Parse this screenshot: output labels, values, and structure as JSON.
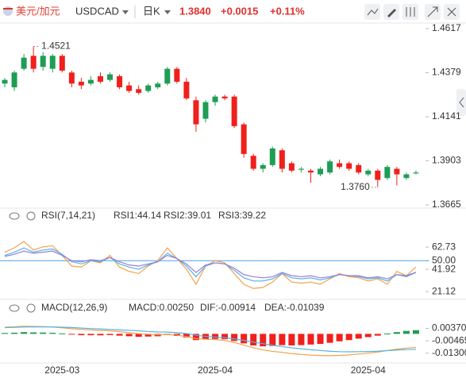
{
  "header": {
    "pair_cn": "美元/加元",
    "symbol": "USDCAD",
    "period": "日K",
    "price": "1.3840",
    "change": "+0.0015",
    "change_pct": "+0.11%"
  },
  "chart_data": [
    {
      "type": "candlestick",
      "up_color": "#1f9d55",
      "down_color": "#f0201c",
      "high_label": "1.4521",
      "low_label": "1.3760",
      "ylim": [
        1.3665,
        1.4617
      ],
      "yticks": [
        1.4617,
        1.4379,
        1.4141,
        1.3903,
        1.3665
      ],
      "open": [
        1.432,
        1.43,
        1.44,
        1.447,
        1.441,
        1.44,
        1.447,
        1.438,
        1.433,
        1.432,
        1.436,
        1.434,
        1.436,
        1.431,
        1.429,
        1.428,
        1.43,
        1.432,
        1.44,
        1.433,
        1.423,
        1.413,
        1.422,
        1.425,
        1.425,
        1.41,
        1.393,
        1.386,
        1.388,
        1.396,
        1.389,
        1.3855,
        1.385,
        1.383,
        1.384,
        1.389,
        1.389,
        1.388,
        1.383,
        1.385,
        1.381,
        1.386,
        1.381,
        1.3835
      ],
      "high": [
        1.435,
        1.439,
        1.448,
        1.4521,
        1.449,
        1.448,
        1.448,
        1.439,
        1.435,
        1.436,
        1.438,
        1.438,
        1.437,
        1.433,
        1.431,
        1.432,
        1.433,
        1.441,
        1.441,
        1.435,
        1.425,
        1.423,
        1.426,
        1.426,
        1.426,
        1.411,
        1.394,
        1.389,
        1.398,
        1.397,
        1.39,
        1.387,
        1.386,
        1.387,
        1.391,
        1.391,
        1.39,
        1.389,
        1.386,
        1.386,
        1.388,
        1.387,
        1.384,
        1.385
      ],
      "low": [
        1.43,
        1.428,
        1.439,
        1.438,
        1.439,
        1.438,
        1.438,
        1.43,
        1.429,
        1.431,
        1.432,
        1.433,
        1.429,
        1.427,
        1.426,
        1.427,
        1.429,
        1.431,
        1.432,
        1.423,
        1.406,
        1.411,
        1.42,
        1.423,
        1.408,
        1.392,
        1.385,
        1.384,
        1.387,
        1.384,
        1.384,
        1.384,
        1.3785,
        1.382,
        1.383,
        1.386,
        1.385,
        1.383,
        1.382,
        1.376,
        1.38,
        1.377,
        1.38,
        1.383
      ],
      "close": [
        1.434,
        1.438,
        1.446,
        1.44,
        1.447,
        1.447,
        1.439,
        1.432,
        1.431,
        1.434,
        1.433,
        1.437,
        1.43,
        1.428,
        1.427,
        1.431,
        1.432,
        1.44,
        1.433,
        1.424,
        1.41,
        1.422,
        1.425,
        1.424,
        1.409,
        1.394,
        1.386,
        1.388,
        1.397,
        1.386,
        1.385,
        1.386,
        1.384,
        1.386,
        1.39,
        1.387,
        1.386,
        1.384,
        1.385,
        1.38,
        1.387,
        1.383,
        1.383,
        1.384
      ]
    },
    {
      "type": "line",
      "title": "RSI(7,14,21)",
      "ylim": [
        16,
        74
      ],
      "yticks": [
        62.73,
        {
          "value": 50,
          "label": "50.00"
        },
        41.92,
        21.12
      ],
      "midline": 50,
      "midline_color": "#4a9fe8",
      "series": [
        {
          "name": "RSI1:44.14",
          "color": "#f4a24a",
          "values": [
            58,
            62,
            68,
            60,
            63,
            64,
            55,
            45,
            44,
            50,
            48,
            55,
            44,
            40,
            38,
            45,
            50,
            62,
            52,
            42,
            28,
            45,
            50,
            48,
            38,
            28,
            24,
            25,
            30,
            38,
            30,
            29,
            30,
            28,
            33,
            38,
            35,
            34,
            31,
            33,
            28,
            40,
            36,
            44.14
          ]
        },
        {
          "name": "RSI2:39.01",
          "color": "#55b3e6",
          "values": [
            55,
            58,
            62,
            58,
            60,
            61,
            56,
            49,
            47,
            50,
            49,
            53,
            47,
            44,
            42,
            46,
            49,
            57,
            52,
            45,
            35,
            45,
            48,
            47,
            41,
            34,
            31,
            31,
            33,
            38,
            34,
            33,
            34,
            32,
            34,
            37,
            36,
            35,
            33,
            34,
            31,
            37,
            35,
            39.01
          ]
        },
        {
          "name": "RSI3:39.22",
          "color": "#9b7fd4",
          "values": [
            54,
            56,
            59,
            57,
            58,
            59,
            55,
            50,
            49,
            51,
            50,
            53,
            49,
            46,
            45,
            47,
            49,
            55,
            52,
            47,
            39,
            46,
            48,
            47,
            43,
            37,
            35,
            34,
            35,
            39,
            36,
            35,
            36,
            34,
            35,
            37,
            36,
            36,
            34,
            35,
            33,
            37,
            36,
            39.22
          ]
        }
      ]
    },
    {
      "type": "combo",
      "title": "MACD(12,26,9)",
      "ylim": [
        -0.018,
        0.012
      ],
      "yticks": [
        {
          "value": 0.0037,
          "label": "0.00370"
        },
        -0.00465,
        {
          "value": -0.013,
          "label": "-0.01300"
        }
      ],
      "up_color": "#1f9d55",
      "down_color": "#f0201c",
      "categories": [
        null,
        null,
        null,
        null,
        null,
        null,
        "2025-03",
        null,
        null,
        null,
        null,
        null,
        null,
        null,
        null,
        null,
        null,
        null,
        null,
        null,
        null,
        null,
        "2025-04",
        null,
        null,
        null,
        null,
        null,
        null,
        null,
        null,
        null,
        null,
        null,
        null,
        null,
        null,
        null,
        "2025-04",
        null,
        null,
        null,
        null,
        null
      ],
      "series": [
        {
          "name": "MACD:0.00250",
          "color": "#9b7fd4",
          "kind": "bar",
          "values": [
            0.0006,
            0.0008,
            0.0012,
            0.001,
            0.0009,
            0.0007,
            0.0003,
            -0.0004,
            -0.0009,
            -0.0009,
            -0.001,
            -0.0008,
            -0.0012,
            -0.0016,
            -0.002,
            -0.0018,
            -0.0016,
            -0.0008,
            -0.0014,
            -0.0024,
            -0.0042,
            -0.0038,
            -0.0034,
            -0.0036,
            -0.0048,
            -0.0064,
            -0.0078,
            -0.0084,
            -0.0082,
            -0.0076,
            -0.0078,
            -0.0076,
            -0.0072,
            -0.0068,
            -0.006,
            -0.005,
            -0.0042,
            -0.0032,
            -0.0022,
            -0.0012,
            0.0002,
            0.0012,
            0.002,
            0.0025
          ]
        },
        {
          "name": "DIF:-0.00914",
          "color": "#f4a24a",
          "kind": "line",
          "values": [
            0.0045,
            0.0048,
            0.0052,
            0.005,
            0.0049,
            0.0046,
            0.0041,
            0.0035,
            0.003,
            0.0027,
            0.0023,
            0.0021,
            0.0015,
            0.0008,
            0.0001,
            -0.0003,
            -0.0006,
            -0.0004,
            -0.0009,
            -0.0018,
            -0.0032,
            -0.0036,
            -0.0038,
            -0.0044,
            -0.0058,
            -0.0076,
            -0.0094,
            -0.0108,
            -0.0118,
            -0.0124,
            -0.0133,
            -0.0139,
            -0.0143,
            -0.0146,
            -0.0147,
            -0.0145,
            -0.0142,
            -0.0136,
            -0.013,
            -0.0123,
            -0.0112,
            -0.0103,
            -0.0096,
            -0.00914
          ]
        },
        {
          "name": "DEA:-0.01039",
          "color": "#55b3e6",
          "kind": "line",
          "values": [
            0.0042,
            0.0044,
            0.0046,
            0.0047,
            0.0047,
            0.0047,
            0.0045,
            0.0043,
            0.0039,
            0.0036,
            0.0033,
            0.003,
            0.0027,
            0.0024,
            0.0021,
            0.0016,
            0.0013,
            0.0012,
            0.0008,
            0.0002,
            -0.0009,
            -0.0017,
            -0.0021,
            -0.0026,
            -0.0034,
            -0.0044,
            -0.0055,
            -0.0066,
            -0.0077,
            -0.0086,
            -0.0094,
            -0.0101,
            -0.0107,
            -0.0112,
            -0.0117,
            -0.012,
            -0.0121,
            -0.012,
            -0.0119,
            -0.0117,
            -0.0113,
            -0.0109,
            -0.0106,
            -0.01039
          ]
        }
      ]
    }
  ]
}
